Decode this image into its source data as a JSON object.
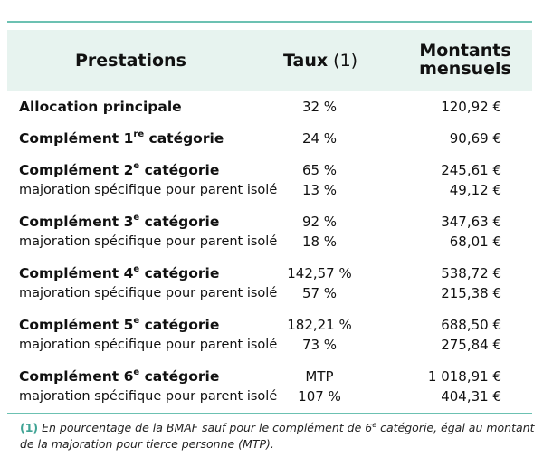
{
  "header": {
    "col_prestations": "Prestations",
    "col_taux": "Taux",
    "col_taux_note": "(1)",
    "col_montants_line1": "Montants",
    "col_montants_line2": "mensuels"
  },
  "rows": [
    {
      "label": "Allocation principale",
      "rate": "32 %",
      "amount": "120,92 €"
    },
    {
      "label_pre": "Complément 1",
      "label_sup": "re",
      "label_post": " catégorie",
      "rate": "24 %",
      "amount": "90,69 €"
    },
    {
      "label_pre": "Complément 2",
      "label_sup": "e",
      "label_post": " catégorie",
      "rate": "65 %",
      "amount": "245,61 €"
    },
    {
      "label": "majoration spécifique pour parent isolé",
      "rate": "13 %",
      "amount": "49,12 €"
    },
    {
      "label_pre": "Complément 3",
      "label_sup": "e",
      "label_post": " catégorie",
      "rate": "92 %",
      "amount": "347,63 €"
    },
    {
      "label": "majoration spécifique pour parent isolé",
      "rate": "18 %",
      "amount": "68,01 €"
    },
    {
      "label_pre": "Complément 4",
      "label_sup": "e",
      "label_post": " catégorie",
      "rate": "142,57 %",
      "amount": "538,72 €"
    },
    {
      "label": "majoration spécifique pour parent isolé",
      "rate": "57 %",
      "amount": "215,38 €"
    },
    {
      "label_pre": "Complément 5",
      "label_sup": "e",
      "label_post": " catégorie",
      "rate": "182,21 %",
      "amount": "688,50 €"
    },
    {
      "label": "majoration spécifique pour parent isolé",
      "rate": "73 %",
      "amount": "275,84 €"
    },
    {
      "label_pre": "Complément 6",
      "label_sup": "e",
      "label_post": " catégorie",
      "rate": "MTP",
      "amount": "1 018,91 €"
    },
    {
      "label": "majoration spécifique pour parent isolé",
      "rate": "107 %",
      "amount": "404,31 €"
    }
  ],
  "footnote": {
    "mark": "(1)",
    "text_pre": " En pourcentage de la BMAF sauf pour le complément de 6",
    "text_sup": "e",
    "text_post": " catégorie, égal au montant de la majoration pour tierce personne (MTP)."
  },
  "colors": {
    "accent": "#6cc1b2",
    "header_bg": "#e7f3ef",
    "footnote_mark": "#3fa394"
  }
}
